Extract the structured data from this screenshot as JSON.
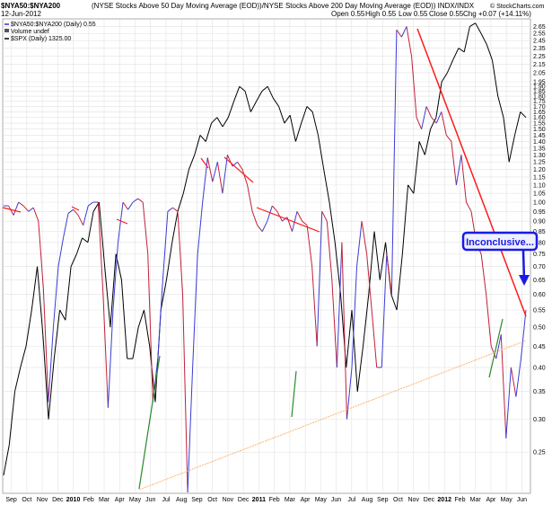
{
  "header": {
    "symbol": "$NYA50:$NYA200",
    "description": "(NYSE Stocks Above 50 Day Moving Average (EOD))/NYSE Stocks Above 200 Day Moving Average (EOD)) INDX/INDX",
    "watermark": "© StockCharts.com",
    "date": "12-Jun-2012",
    "open": "Open 0.55",
    "high": "High 0.55",
    "low": "Low 0.55",
    "close": "Close 0.55",
    "chg": "Chg +0.07 (+14.11%)",
    "legend": [
      {
        "label": "$NYA50:$NYA200 (Daily) 0.55",
        "color": "#3333cc"
      },
      {
        "label": "Volume undef",
        "color": "#555555"
      },
      {
        "label": "$SPX (Daily) 1325.00",
        "color": "#000000"
      }
    ]
  },
  "annotation": {
    "text": "Inconclusive..."
  },
  "colors": {
    "ratio_up": "#3b3bd6",
    "ratio_down": "#c0203a",
    "spx": "#000000",
    "trend_red": "#ff1a1a",
    "trend_green": "#2a8a2a",
    "trend_orange": "#ffb26b",
    "callout_border": "#1a1ae6",
    "callout_fill": "#eef0ff"
  },
  "chart_data": {
    "type": "line",
    "x_start": "2009-09",
    "x_end": "2012-06",
    "y_scale": "log",
    "ylim": [
      0.2,
      2.75
    ],
    "grid": true,
    "x_ticks": [
      "Sep",
      "Oct",
      "Nov",
      "Dec",
      "2010",
      "Feb",
      "Mar",
      "Apr",
      "May",
      "Jun",
      "Jul",
      "Aug",
      "Sep",
      "Oct",
      "Nov",
      "Dec",
      "2011",
      "Feb",
      "Mar",
      "Apr",
      "May",
      "Jun",
      "Jul",
      "Aug",
      "Sep",
      "Oct",
      "Nov",
      "Dec",
      "2012",
      "Feb",
      "Mar",
      "Apr",
      "May",
      "Jun"
    ],
    "y_ticks": [
      "0.25",
      "0.30",
      "0.35",
      "0.40",
      "0.45",
      "0.50",
      "0.55",
      "0.60",
      "0.65",
      "0.70",
      "0.75",
      "0.80",
      "0.85",
      "0.90",
      "0.95",
      "1.00",
      "1.05",
      "1.10",
      "1.15",
      "1.20",
      "1.25",
      "1.30",
      "1.35",
      "1.40",
      "1.45",
      "1.50",
      "1.55",
      "1.60",
      "1.65",
      "1.70",
      "1.75",
      "1.80",
      "1.85",
      "1.90",
      "1.95",
      "2.05",
      "2.15",
      "2.25",
      "2.35",
      "2.45",
      "2.55",
      "2.65"
    ],
    "series": [
      {
        "name": "$NYA50:$NYA200 (Daily)",
        "values": [
          0.98,
          0.98,
          0.93,
          1.0,
          0.98,
          0.95,
          0.97,
          0.9,
          0.62,
          0.33,
          0.5,
          0.7,
          0.82,
          0.94,
          0.96,
          0.93,
          0.88,
          0.98,
          1.0,
          1.0,
          0.6,
          0.32,
          0.55,
          0.8,
          1.0,
          0.96,
          1.0,
          1.02,
          1.0,
          0.75,
          0.33,
          0.42,
          0.65,
          0.95,
          0.97,
          0.95,
          0.6,
          0.2,
          0.4,
          0.75,
          1.0,
          1.28,
          1.12,
          1.25,
          1.05,
          1.3,
          1.22,
          1.25,
          1.2,
          1.1,
          0.95,
          0.88,
          0.85,
          0.9,
          0.98,
          0.95,
          0.9,
          0.92,
          0.85,
          0.95,
          0.9,
          0.88,
          0.7,
          0.45,
          0.95,
          0.9,
          0.65,
          0.4,
          0.8,
          0.3,
          0.4,
          0.7,
          0.9,
          0.75,
          0.55,
          0.4,
          0.4,
          0.75,
          0.6,
          2.6,
          2.5,
          2.65,
          2.25,
          1.6,
          1.5,
          1.7,
          1.6,
          1.55,
          1.65,
          1.45,
          1.4,
          1.1,
          1.3,
          1.0,
          0.95,
          0.8,
          0.75,
          0.6,
          0.45,
          0.42,
          0.48,
          0.27,
          0.4,
          0.34,
          0.42,
          0.55
        ]
      },
      {
        "name": "$SPX (Daily)",
        "values": [
          0.22,
          0.26,
          0.35,
          0.4,
          0.45,
          0.55,
          0.7,
          0.48,
          0.3,
          0.42,
          0.55,
          0.52,
          0.7,
          0.75,
          0.82,
          0.8,
          0.95,
          1.0,
          0.7,
          0.5,
          0.75,
          0.65,
          0.42,
          0.42,
          0.5,
          0.55,
          0.45,
          0.33,
          0.55,
          0.65,
          0.8,
          0.95,
          1.05,
          1.2,
          1.3,
          1.45,
          1.4,
          1.55,
          1.6,
          1.52,
          1.6,
          1.75,
          1.9,
          1.85,
          1.65,
          1.75,
          1.85,
          1.9,
          1.78,
          1.7,
          1.55,
          1.62,
          1.4,
          1.55,
          1.7,
          1.65,
          1.45,
          1.2,
          1.0,
          0.8,
          0.6,
          0.4,
          0.55,
          0.35,
          0.45,
          0.6,
          0.85,
          0.65,
          0.8,
          0.6,
          0.55,
          0.75,
          1.1,
          1.05,
          1.4,
          1.3,
          1.5,
          1.6,
          1.95,
          2.05,
          2.2,
          2.35,
          2.3,
          2.65,
          2.7,
          2.55,
          2.4,
          2.2,
          1.8,
          1.6,
          1.25,
          1.45,
          1.65,
          1.6
        ]
      }
    ]
  }
}
